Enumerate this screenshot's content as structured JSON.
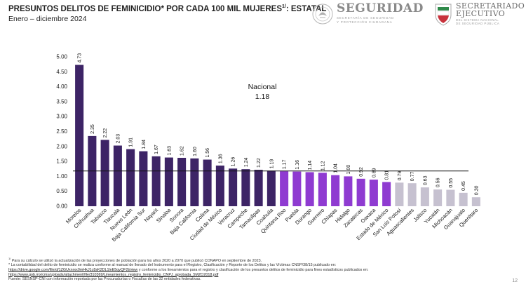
{
  "header": {
    "title": "PRESUNTOS DELITOS DE FEMINICIDIO* POR CADA 100 MIL MUJERES",
    "title_sup": "1/",
    "title_suffix": ": ESTATAL",
    "subtitle": "Enero – diciembre 2024"
  },
  "logos": {
    "seguridad": {
      "word": "SEGURIDAD",
      "line1": "SECRETARÍA DE SEGURIDAD",
      "line2": "Y PROTECCIÓN CIUDADANA"
    },
    "secretariado": {
      "word1": "SECRETARIADO",
      "word2": "EJECUTIVO",
      "line1": "DEL SISTEMA NACIONAL",
      "line2": "DE SEGURIDAD PÚBLICA"
    }
  },
  "colors": {
    "dark": "#3d2466",
    "mid": "#8f3bd1",
    "light": "#c6c1d0",
    "reference_line": "#111111",
    "axis_text": "#222222"
  },
  "chart_data": {
    "type": "bar",
    "title": "PRESUNTOS DELITOS DE FEMINICIDIO* POR CADA 100 MIL MUJERES: ESTATAL",
    "xlabel": "",
    "ylabel": "",
    "ylim": [
      0,
      5
    ],
    "yticks": [
      "0.00",
      "0.50",
      "1.00",
      "1.50",
      "2.00",
      "2.50",
      "3.00",
      "3.50",
      "4.00",
      "4.50",
      "5.00"
    ],
    "grid": false,
    "categories": [
      "Morelos",
      "Chihuahua",
      "Tabasco",
      "Tlaxcala",
      "Nuevo León",
      "Baja California Sur",
      "Nayarit",
      "Sinaloa",
      "Sonora",
      "Baja California",
      "Colima",
      "Ciudad de México",
      "Veracruz",
      "Campeche",
      "Tamaulipas",
      "Coahuila",
      "Quintana Roo",
      "Puebla",
      "Durango",
      "Guerrero",
      "Chiapas",
      "Hidalgo",
      "Zacatecas",
      "Oaxaca",
      "Estado de México",
      "San Luis Potosí",
      "Aguascalientes",
      "Jalisco",
      "Yucatán",
      "Michoacán",
      "Guanajuato",
      "Querétaro"
    ],
    "values": [
      4.73,
      2.35,
      2.22,
      2.03,
      1.91,
      1.84,
      1.67,
      1.63,
      1.62,
      1.6,
      1.56,
      1.36,
      1.26,
      1.24,
      1.22,
      1.19,
      1.17,
      1.16,
      1.14,
      1.12,
      1.04,
      1.0,
      0.92,
      0.89,
      0.81,
      0.79,
      0.77,
      0.63,
      0.56,
      0.55,
      0.45,
      0.3
    ],
    "value_labels": [
      "4.73",
      "2.35",
      "2.22",
      "2.03",
      "1.91",
      "1.84",
      "1.67",
      "1.63",
      "1.62",
      "1.60",
      "1.56",
      "1.36",
      "1.26",
      "1.24",
      "1.22",
      "1.19",
      "1.17",
      "1.16",
      "1.14",
      "1.12",
      "1.04",
      "1.00",
      "0.92",
      "0.89",
      "0.81",
      "0.79",
      "0.77",
      "0.63",
      "0.56",
      "0.55",
      "0.45",
      "0.30"
    ],
    "color_groups": [
      "dark",
      "dark",
      "dark",
      "dark",
      "dark",
      "dark",
      "dark",
      "dark",
      "dark",
      "dark",
      "dark",
      "dark",
      "dark",
      "dark",
      "dark",
      "dark",
      "mid",
      "mid",
      "mid",
      "mid",
      "mid",
      "mid",
      "mid",
      "mid",
      "mid",
      "light",
      "light",
      "light",
      "light",
      "light",
      "light",
      "light"
    ],
    "reference": {
      "label": "Nacional",
      "value": 1.18,
      "value_label": "1.18"
    }
  },
  "notes": {
    "n1_sup": "1/",
    "n1": " Para su cálculo se utilizó la actualización de las proyecciones de población para los años 2020 a 2070 que publicó CONAPO en septiembre de 2023.",
    "n2_lead": "* La contabilidad del delito de feminicidio se realiza conforme al manual de llenado del Instrumento para el Registro, Clasificación y Reporte de los Delitos y las Víctimas CNSP/38/15 publicado en:",
    "link1": "https://drive.google.com/file/d/1ZGUxnrxx0mHkJ1c8sK2DL1lnE5qvQF2t/view",
    "n2_mid": " y conforme a los lineamientos para el registro y clasificación de los presuntos delitos de feminicidio para fines estadísticos publicados en:",
    "link2": "https://www.gob.mx/cms/uploads/attachment/file/310369/Lineamientos_registro_feminicidio_CNPJ_aprobada_5MZO2018.pdf",
    "source": "Fuente: SESNSP-CNI con información reportada por las Procuradurías o Fiscalías de las 32 entidades federativas."
  },
  "page_number": "12"
}
